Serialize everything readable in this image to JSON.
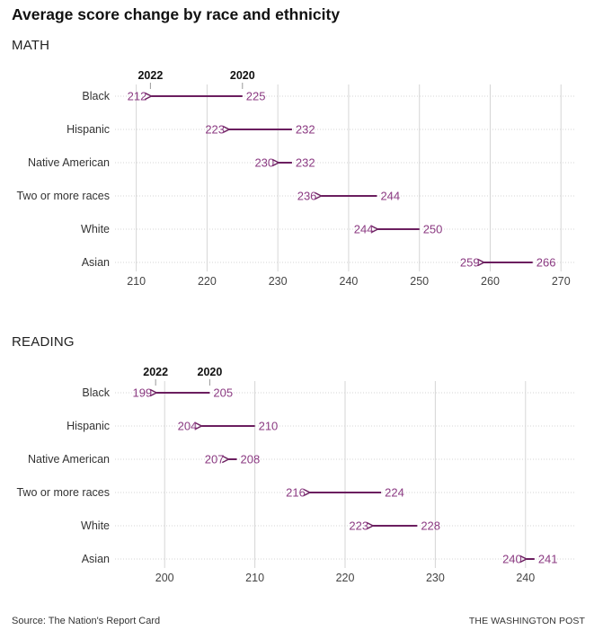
{
  "title": "Average score change by race and ethnicity",
  "colors": {
    "arrow": "#6b1e5f",
    "value_text": "#8b3a82",
    "grid": "#d6d6d6",
    "label": "#333333",
    "axis_text": "#444444"
  },
  "footer": {
    "source": "Source: The Nation's Report Card",
    "credit": "THE WASHINGTON POST"
  },
  "chart_data": [
    {
      "type": "arrow",
      "title": "MATH",
      "start_label": "2020",
      "end_label": "2022",
      "categories": [
        "Black",
        "Hispanic",
        "Native American",
        "Two or more races",
        "White",
        "Asian"
      ],
      "series": [
        {
          "name": "2020",
          "values": [
            225,
            232,
            232,
            244,
            250,
            266
          ]
        },
        {
          "name": "2022",
          "values": [
            212,
            223,
            230,
            236,
            244,
            259
          ]
        }
      ],
      "xticks": [
        210,
        220,
        230,
        240,
        250,
        260,
        270
      ],
      "xlim": [
        207,
        272
      ],
      "grid": true
    },
    {
      "type": "arrow",
      "title": "READING",
      "start_label": "2020",
      "end_label": "2022",
      "categories": [
        "Black",
        "Hispanic",
        "Native American",
        "Two or more races",
        "White",
        "Asian"
      ],
      "series": [
        {
          "name": "2020",
          "values": [
            205,
            210,
            208,
            224,
            228,
            241
          ]
        },
        {
          "name": "2022",
          "values": [
            199,
            204,
            207,
            216,
            223,
            240
          ]
        }
      ],
      "xticks": [
        200,
        210,
        220,
        230,
        240
      ],
      "xlim": [
        194.5,
        245.5
      ],
      "grid": true
    }
  ]
}
